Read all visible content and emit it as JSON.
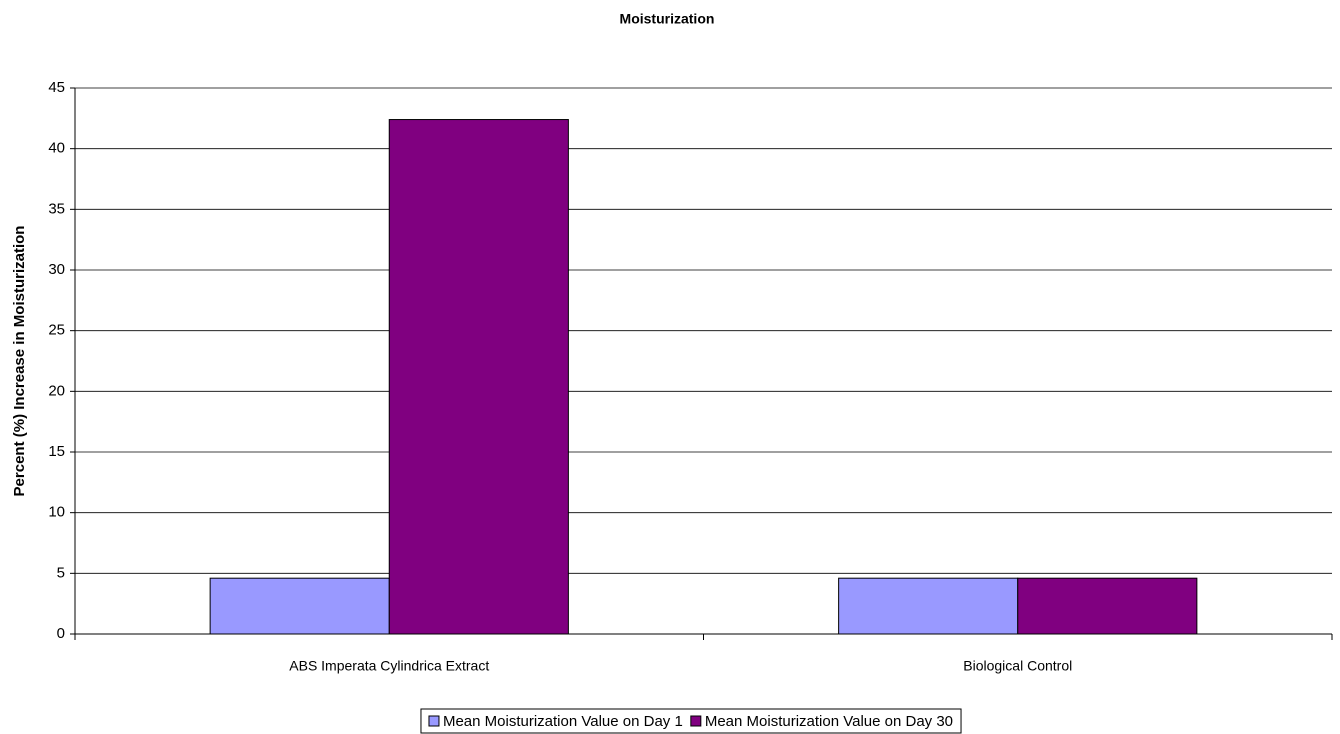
{
  "chart_data": {
    "type": "bar",
    "title": "Moisturization",
    "y_label": "Percent (%) Increase in Moisturization",
    "categories": [
      "ABS Imperata Cylindrica Extract",
      "Biological Control"
    ],
    "series": [
      {
        "name": "Mean Moisturization Value on Day 1",
        "color": "#9999ff",
        "values": [
          4.6,
          4.6
        ]
      },
      {
        "name": "Mean Moisturization Value on Day 30",
        "color": "#800080",
        "values": [
          42.4,
          4.6
        ]
      }
    ],
    "ylim": [
      0,
      45
    ],
    "yticks": [
      0,
      5,
      10,
      15,
      20,
      25,
      30,
      35,
      40,
      45
    ],
    "grid": true,
    "legend": "bottom"
  }
}
